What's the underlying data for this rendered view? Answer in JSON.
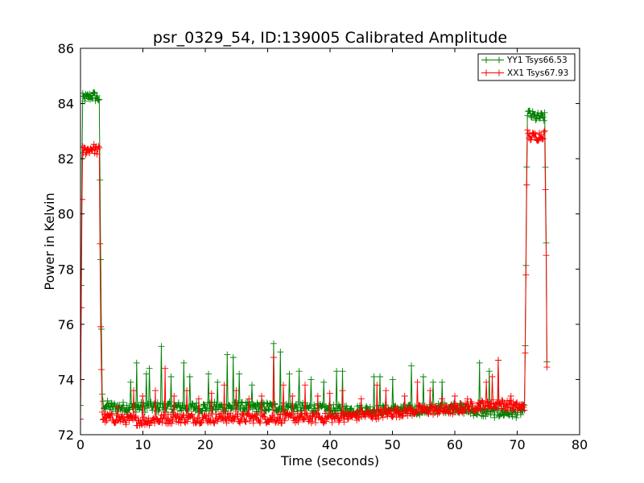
{
  "chart_data": {
    "type": "line",
    "title": "psr_0329_54, ID:139005 Calibrated Amplitude",
    "xlabel": "Time (seconds)",
    "ylabel": "Power in Kelvin",
    "xlim": [
      0,
      80
    ],
    "ylim": [
      72,
      86
    ],
    "xticks": [
      0,
      10,
      20,
      30,
      40,
      50,
      60,
      70,
      80
    ],
    "yticks": [
      72,
      74,
      76,
      78,
      80,
      82,
      84,
      86
    ],
    "grid": false,
    "legend_position": "top-right",
    "marker": "plus",
    "series": [
      {
        "name": "YY1 Tsys66.53",
        "color": "#008000",
        "x": [
          0,
          0.3,
          0.6,
          1,
          2,
          2.6,
          3.0,
          3.2,
          3.5,
          5,
          10,
          15,
          20,
          25,
          30,
          35,
          40,
          45,
          50,
          55,
          60,
          62,
          65,
          68,
          70,
          71.2,
          71.6,
          72,
          73,
          74.4,
          74.6,
          74.8
        ],
        "y": [
          73.0,
          84.2,
          84.2,
          84.2,
          84.3,
          84.2,
          84.2,
          79.0,
          73.1,
          73.0,
          73.0,
          73.0,
          73.0,
          73.0,
          73.0,
          73.0,
          72.9,
          72.9,
          72.9,
          72.9,
          73.0,
          72.9,
          72.8,
          72.8,
          72.8,
          72.9,
          83.7,
          83.6,
          83.5,
          83.5,
          80.4,
          73.2
        ],
        "spikes": [
          {
            "x": 8,
            "y": 73.9
          },
          {
            "x": 9,
            "y": 74.6
          },
          {
            "x": 10.5,
            "y": 74.2
          },
          {
            "x": 11,
            "y": 74.4
          },
          {
            "x": 13,
            "y": 75.2
          },
          {
            "x": 14.5,
            "y": 74.1
          },
          {
            "x": 16.5,
            "y": 74.6
          },
          {
            "x": 17.5,
            "y": 74.1
          },
          {
            "x": 20.5,
            "y": 74.2
          },
          {
            "x": 22,
            "y": 73.9
          },
          {
            "x": 23.5,
            "y": 74.9
          },
          {
            "x": 24.5,
            "y": 74.8
          },
          {
            "x": 25.5,
            "y": 74.2
          },
          {
            "x": 27.5,
            "y": 73.8
          },
          {
            "x": 31,
            "y": 75.3
          },
          {
            "x": 32,
            "y": 75.0
          },
          {
            "x": 33.5,
            "y": 74.2
          },
          {
            "x": 35,
            "y": 74.3
          },
          {
            "x": 37,
            "y": 74.0
          },
          {
            "x": 39,
            "y": 73.9
          },
          {
            "x": 41,
            "y": 74.3
          },
          {
            "x": 42,
            "y": 74.3
          },
          {
            "x": 47,
            "y": 74.1
          },
          {
            "x": 48,
            "y": 74.1
          },
          {
            "x": 50,
            "y": 74.0
          },
          {
            "x": 53,
            "y": 74.5
          },
          {
            "x": 55,
            "y": 74.1
          },
          {
            "x": 56.5,
            "y": 73.9
          },
          {
            "x": 58,
            "y": 73.9
          },
          {
            "x": 64,
            "y": 74.6
          },
          {
            "x": 65.5,
            "y": 74.3
          },
          {
            "x": 67,
            "y": 74.7
          }
        ]
      },
      {
        "name": "XX1 Tsys67.93",
        "color": "#ff0000",
        "x": [
          0,
          0.3,
          0.6,
          1,
          2,
          2.6,
          3.0,
          3.2,
          3.5,
          5,
          10,
          15,
          20,
          25,
          30,
          35,
          40,
          45,
          50,
          55,
          60,
          62,
          65,
          68,
          70,
          71.2,
          71.6,
          72,
          73,
          74.4,
          74.6,
          74.8
        ],
        "y": [
          72.7,
          82.3,
          82.3,
          82.3,
          82.4,
          82.3,
          82.3,
          76.5,
          72.6,
          72.6,
          72.5,
          72.6,
          72.6,
          72.6,
          72.6,
          72.6,
          72.6,
          72.7,
          72.8,
          72.9,
          72.9,
          73.0,
          73.1,
          73.1,
          73.0,
          73.0,
          82.9,
          82.8,
          82.8,
          82.9,
          79.7,
          73.0
        ],
        "spikes": [
          {
            "x": 6,
            "y": 73.0
          },
          {
            "x": 8.5,
            "y": 73.6
          },
          {
            "x": 10,
            "y": 73.4
          },
          {
            "x": 12,
            "y": 73.6
          },
          {
            "x": 13.5,
            "y": 74.4
          },
          {
            "x": 15,
            "y": 73.4
          },
          {
            "x": 17,
            "y": 73.6
          },
          {
            "x": 19,
            "y": 73.3
          },
          {
            "x": 21,
            "y": 73.5
          },
          {
            "x": 23,
            "y": 73.8
          },
          {
            "x": 25,
            "y": 73.6
          },
          {
            "x": 27,
            "y": 73.3
          },
          {
            "x": 29,
            "y": 73.4
          },
          {
            "x": 31,
            "y": 74.8
          },
          {
            "x": 32.5,
            "y": 73.8
          },
          {
            "x": 34,
            "y": 73.4
          },
          {
            "x": 36,
            "y": 73.8
          },
          {
            "x": 38,
            "y": 73.4
          },
          {
            "x": 40,
            "y": 73.5
          },
          {
            "x": 42,
            "y": 73.6
          },
          {
            "x": 45,
            "y": 73.3
          },
          {
            "x": 47.5,
            "y": 73.8
          },
          {
            "x": 49,
            "y": 73.6
          },
          {
            "x": 52,
            "y": 73.4
          },
          {
            "x": 54,
            "y": 73.9
          },
          {
            "x": 56,
            "y": 73.6
          },
          {
            "x": 58,
            "y": 73.3
          },
          {
            "x": 60,
            "y": 73.4
          },
          {
            "x": 62,
            "y": 73.3
          },
          {
            "x": 65,
            "y": 73.9
          },
          {
            "x": 66,
            "y": 74.1
          },
          {
            "x": 67,
            "y": 74.7
          },
          {
            "x": 69,
            "y": 73.4
          }
        ]
      }
    ]
  }
}
